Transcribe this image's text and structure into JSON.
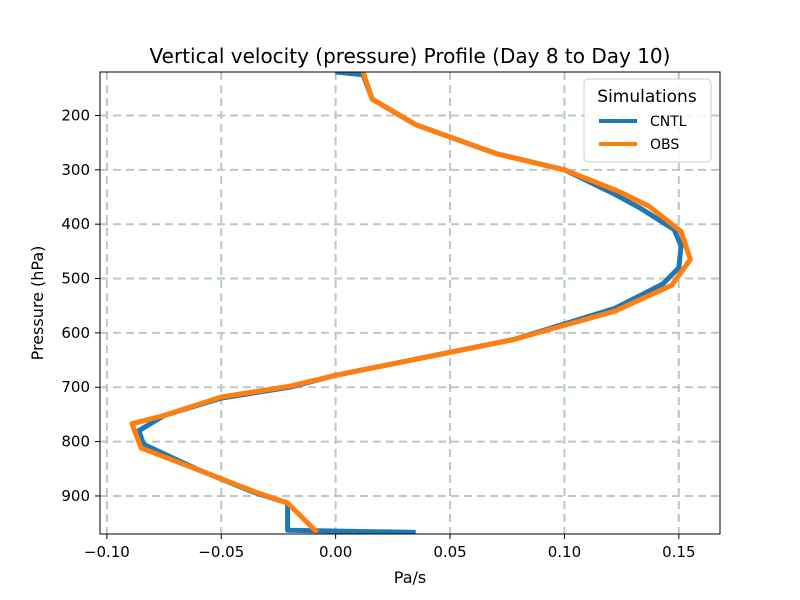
{
  "chart_data": {
    "type": "line",
    "title": "Vertical velocity (pressure) Profile (Day 8 to Day 10)",
    "xlabel": "Pa/s",
    "ylabel": "Pressure (hPa)",
    "xlim": [
      -0.103,
      0.168
    ],
    "ylim": [
      970,
      120
    ],
    "y_inverted": true,
    "x_ticks": [
      -0.1,
      -0.05,
      0.0,
      0.05,
      0.1,
      0.15
    ],
    "x_tick_labels": [
      "−0.10",
      "−0.05",
      "0.00",
      "0.05",
      "0.10",
      "0.15"
    ],
    "y_ticks": [
      200,
      300,
      400,
      500,
      600,
      700,
      800,
      900
    ],
    "y_tick_labels": [
      "200",
      "300",
      "400",
      "500",
      "600",
      "700",
      "800",
      "900"
    ],
    "grid": true,
    "legend": {
      "title": "Simulations",
      "position": "upper right"
    },
    "series": [
      {
        "name": "CNTL",
        "color": "#1f77b4",
        "points": [
          [
            0.0,
            120
          ],
          [
            0.012,
            125
          ],
          [
            0.016,
            170
          ],
          [
            0.035,
            217
          ],
          [
            0.07,
            270
          ],
          [
            0.1,
            300
          ],
          [
            0.122,
            345
          ],
          [
            0.133,
            370
          ],
          [
            0.148,
            410
          ],
          [
            0.151,
            440
          ],
          [
            0.15,
            480
          ],
          [
            0.143,
            510
          ],
          [
            0.122,
            555
          ],
          [
            0.078,
            612
          ],
          [
            0.0,
            678
          ],
          [
            -0.02,
            700
          ],
          [
            -0.05,
            720
          ],
          [
            -0.075,
            752
          ],
          [
            -0.086,
            780
          ],
          [
            -0.084,
            805
          ],
          [
            -0.061,
            850
          ],
          [
            -0.036,
            893
          ],
          [
            -0.021,
            913
          ],
          [
            -0.021,
            963
          ],
          [
            0.035,
            967
          ]
        ]
      },
      {
        "name": "OBS",
        "color": "#ff7f0e",
        "points": [
          [
            0.012,
            120
          ],
          [
            0.016,
            170
          ],
          [
            0.035,
            217
          ],
          [
            0.07,
            270
          ],
          [
            0.1,
            300
          ],
          [
            0.124,
            340
          ],
          [
            0.137,
            367
          ],
          [
            0.151,
            413
          ],
          [
            0.155,
            465
          ],
          [
            0.147,
            512
          ],
          [
            0.122,
            560
          ],
          [
            0.078,
            612
          ],
          [
            0.0,
            678
          ],
          [
            -0.02,
            698
          ],
          [
            -0.05,
            718
          ],
          [
            -0.075,
            752
          ],
          [
            -0.089,
            767
          ],
          [
            -0.085,
            812
          ],
          [
            -0.06,
            852
          ],
          [
            -0.035,
            893
          ],
          [
            -0.021,
            913
          ],
          [
            -0.008,
            967
          ]
        ]
      }
    ]
  }
}
